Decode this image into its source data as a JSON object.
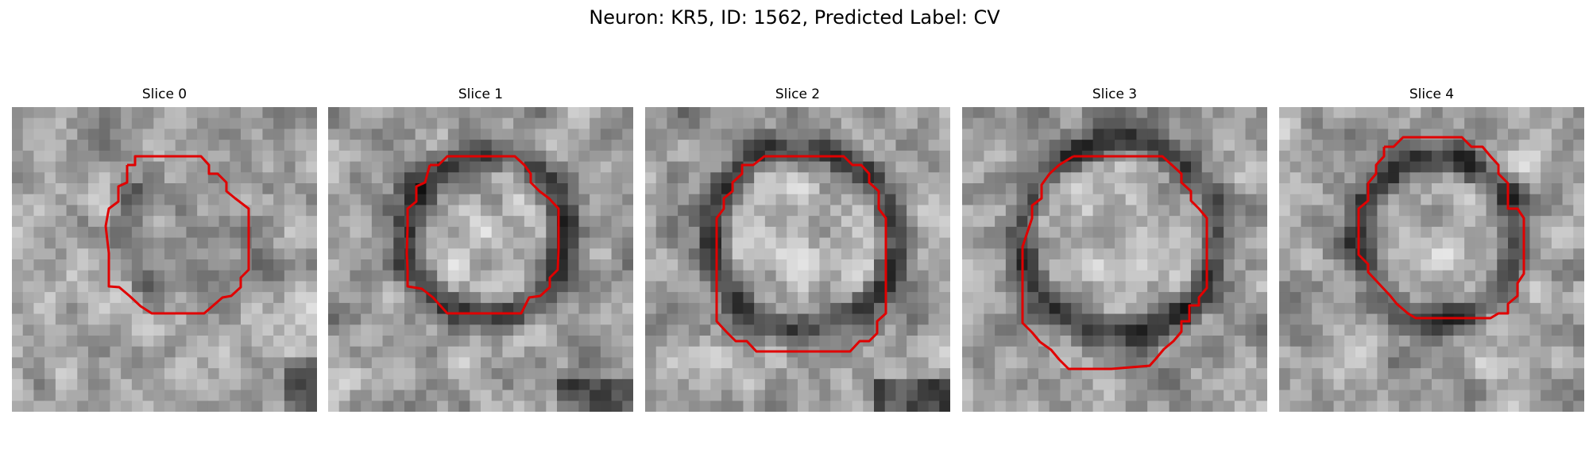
{
  "figure": {
    "title": "Neuron: KR5, ID: 1562, Predicted Label: CV",
    "contour_color": "#e00000",
    "panels": [
      {
        "title": "Slice 0"
      },
      {
        "title": "Slice 1"
      },
      {
        "title": "Slice 2"
      },
      {
        "title": "Slice 3"
      },
      {
        "title": "Slice 4"
      }
    ]
  }
}
